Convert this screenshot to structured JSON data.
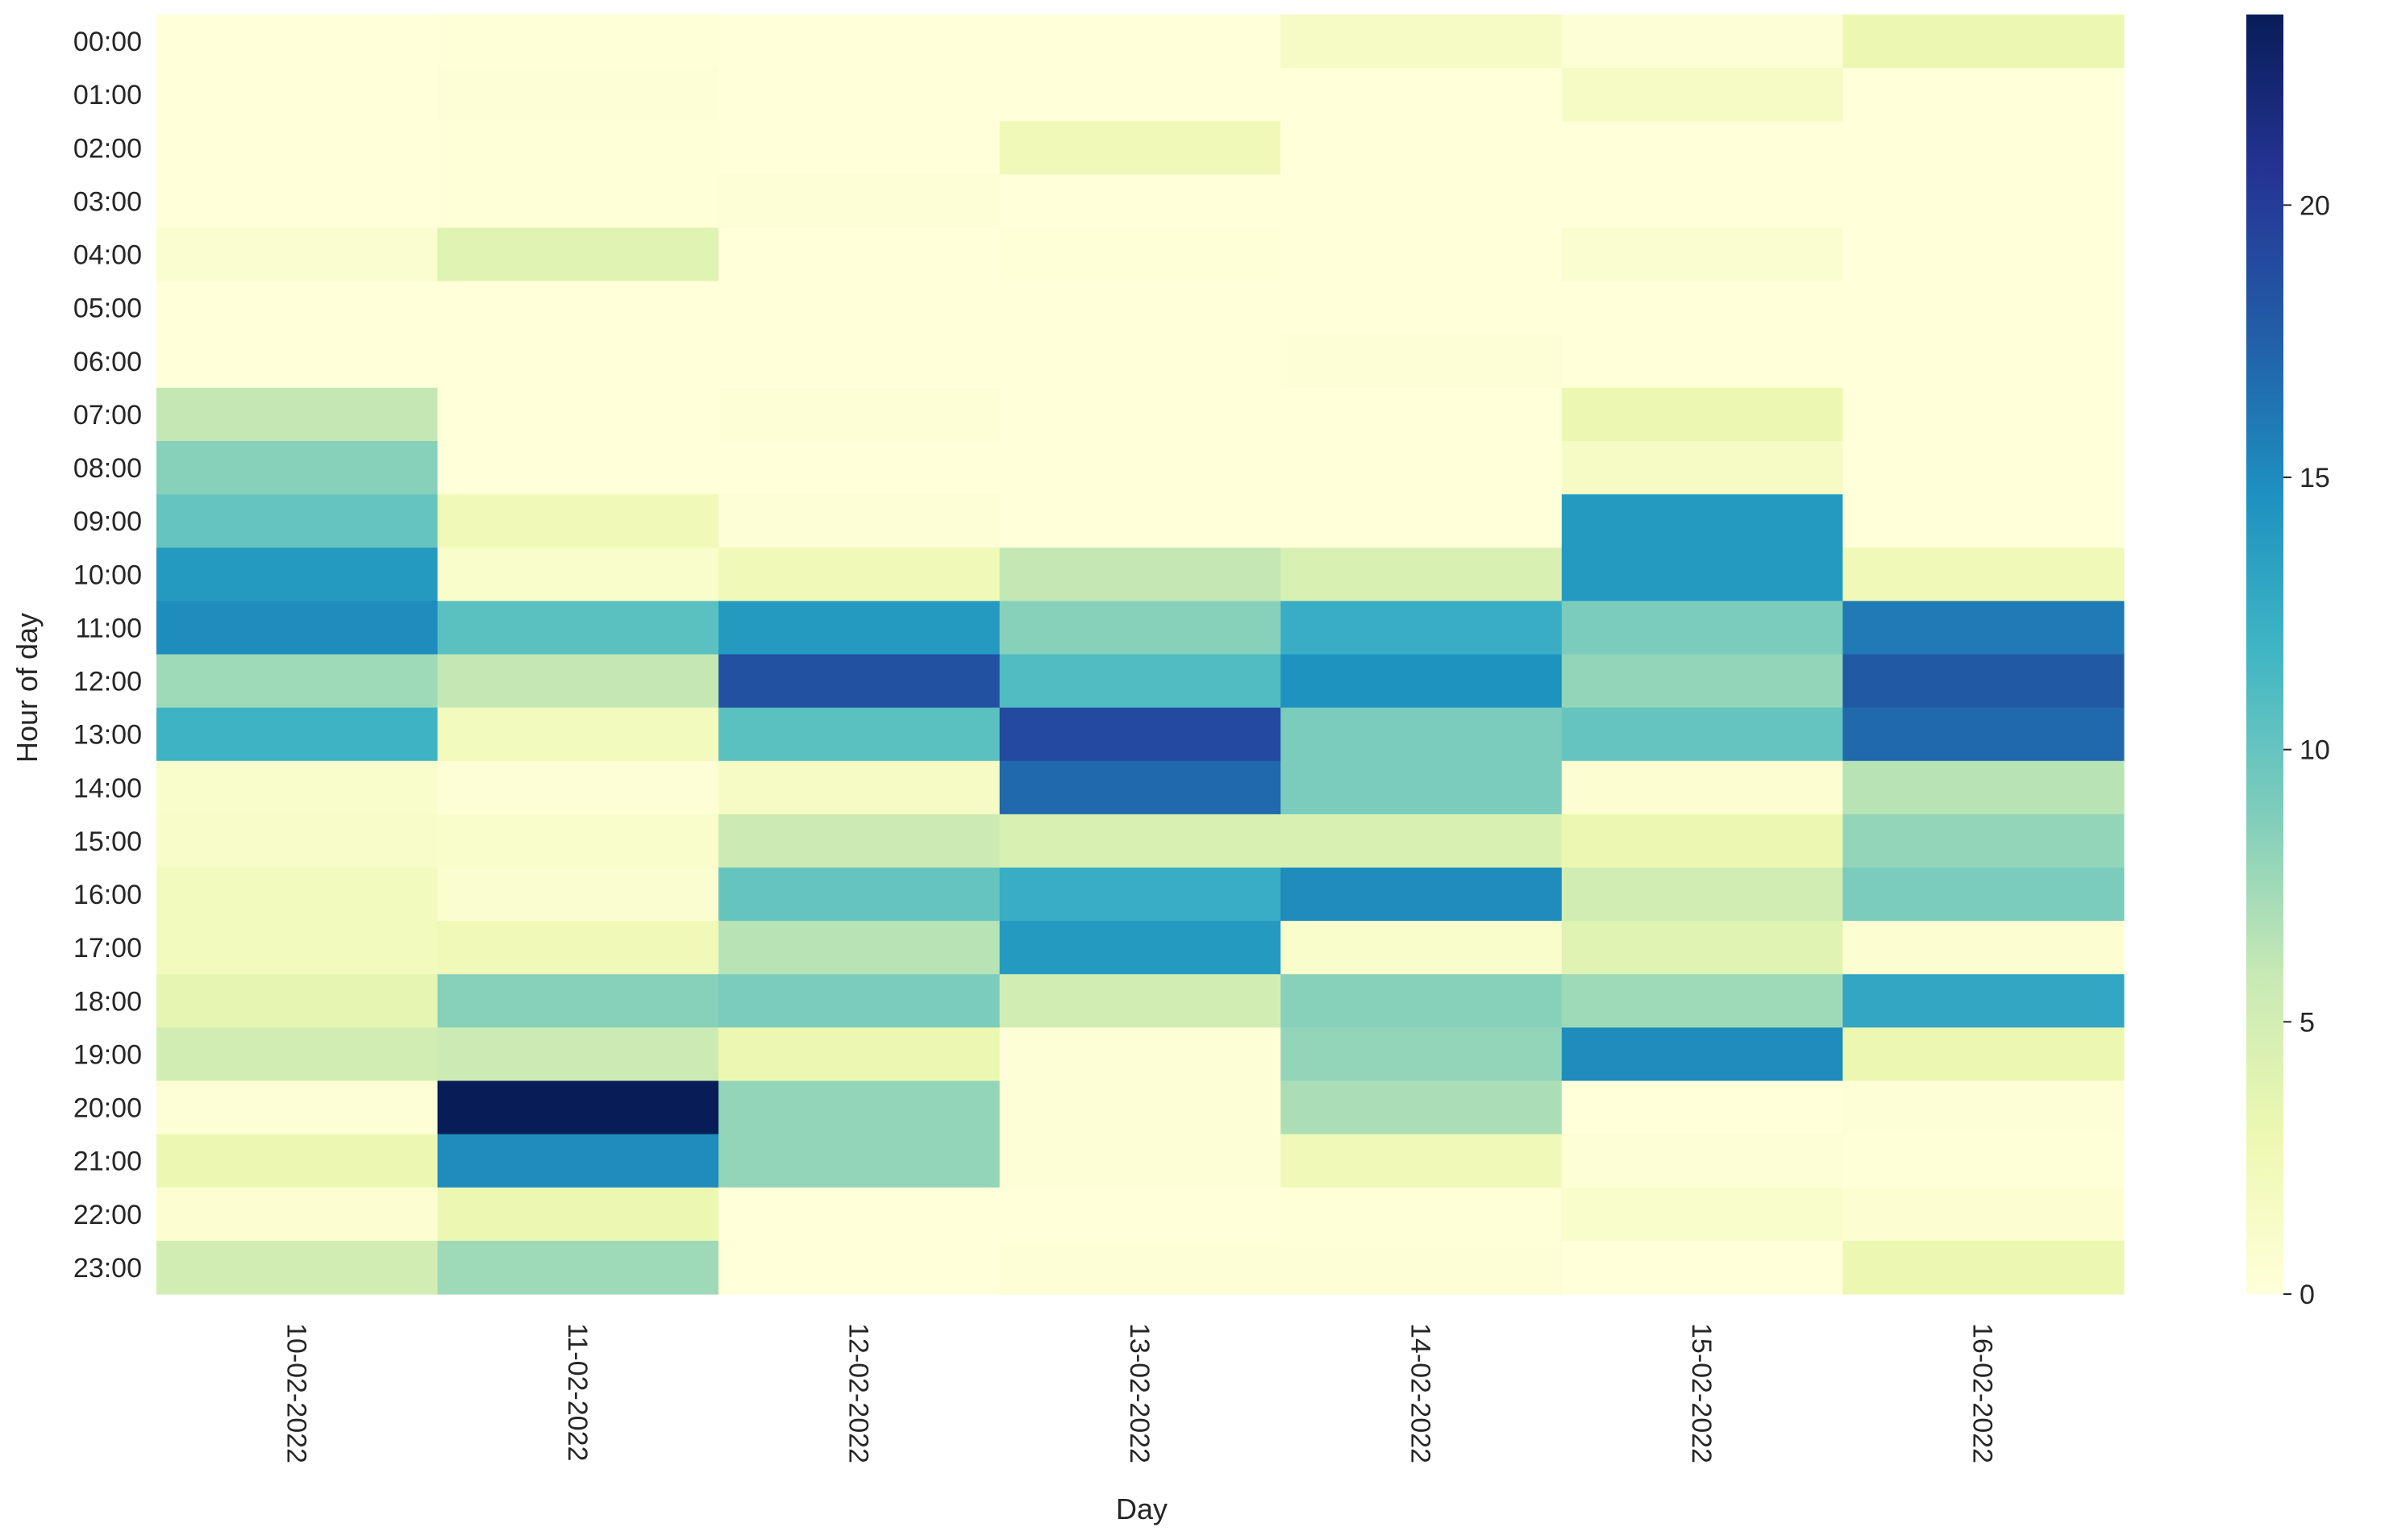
{
  "chart_data": {
    "type": "heatmap",
    "title": "",
    "xlabel": "Day",
    "ylabel": "Hour of day",
    "columns": [
      "10-02-2022",
      "11-02-2022",
      "12-02-2022",
      "13-02-2022",
      "14-02-2022",
      "15-02-2022",
      "16-02-2022"
    ],
    "rows": [
      "00:00",
      "01:00",
      "02:00",
      "03:00",
      "04:00",
      "05:00",
      "06:00",
      "07:00",
      "08:00",
      "09:00",
      "10:00",
      "11:00",
      "12:00",
      "13:00",
      "14:00",
      "15:00",
      "16:00",
      "17:00",
      "18:00",
      "19:00",
      "20:00",
      "21:00",
      "22:00",
      "23:00"
    ],
    "values": [
      [
        0,
        0.2,
        0,
        0,
        1.5,
        0.3,
        3
      ],
      [
        0,
        0.3,
        0,
        0,
        0,
        1.5,
        0
      ],
      [
        0,
        0.2,
        0,
        2.5,
        0,
        0,
        0
      ],
      [
        0,
        0.2,
        0.3,
        0,
        0,
        0,
        0
      ],
      [
        0.8,
        4,
        0,
        0.2,
        0,
        0.8,
        0
      ],
      [
        0,
        0,
        0,
        0,
        0,
        0,
        0
      ],
      [
        0,
        0,
        0,
        0,
        0.3,
        0,
        0
      ],
      [
        6,
        0,
        0.3,
        0,
        0,
        3,
        0
      ],
      [
        8.5,
        0,
        0,
        0,
        0,
        1.5,
        0
      ],
      [
        10,
        2.5,
        0.3,
        0,
        0,
        14,
        0
      ],
      [
        14,
        1,
        2.5,
        6,
        4.5,
        14,
        2.5
      ],
      [
        15,
        10.5,
        14,
        8.5,
        12.5,
        9,
        16
      ],
      [
        7.5,
        6,
        18.5,
        11,
        14.5,
        8,
        18
      ],
      [
        12,
        2,
        10.5,
        19,
        9,
        10,
        17
      ],
      [
        1,
        0.3,
        1.5,
        17,
        9,
        0.5,
        6.5
      ],
      [
        1.2,
        1,
        5.5,
        4.5,
        4.5,
        3,
        8
      ],
      [
        2,
        0.8,
        10,
        12.5,
        15,
        5,
        9
      ],
      [
        2,
        2.5,
        6.5,
        14,
        1,
        4,
        0.5
      ],
      [
        3.5,
        8.5,
        9,
        5,
        8.5,
        7.5,
        13
      ],
      [
        5,
        5.5,
        3,
        0.3,
        8,
        15,
        3
      ],
      [
        0.3,
        23.5,
        8,
        0.3,
        7,
        0,
        0.3
      ],
      [
        3,
        15,
        8,
        0.3,
        2.5,
        0.3,
        0.2
      ],
      [
        0.5,
        3,
        0,
        0,
        0.2,
        1,
        0.5
      ],
      [
        5,
        7.5,
        0,
        0.3,
        0.3,
        0,
        3
      ]
    ],
    "vmin": 0,
    "vmax": 23.5,
    "colormap": "YlGnBu",
    "colorbar_ticks": [
      0,
      5,
      10,
      15,
      20
    ],
    "colorbar_tick_labels": [
      "0",
      "5",
      "10",
      "15",
      "20"
    ],
    "grid": false
  }
}
